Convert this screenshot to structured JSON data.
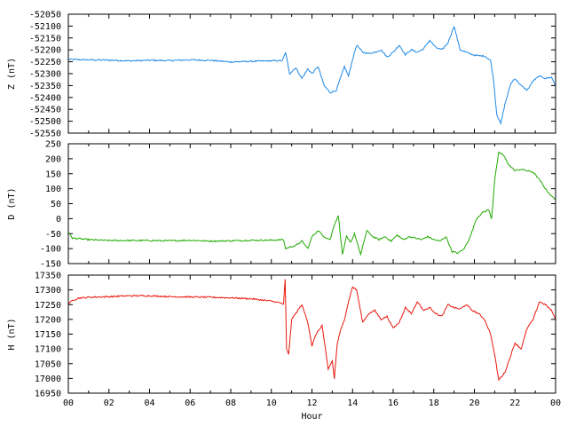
{
  "chart_data": {
    "type": "line",
    "xlabel": "Hour",
    "xlim": [
      0,
      24
    ],
    "x_tick_labels": [
      "00",
      "02",
      "04",
      "06",
      "08",
      "10",
      "12",
      "14",
      "16",
      "18",
      "20",
      "22",
      "00"
    ],
    "grid": false,
    "legend": "none",
    "panels": [
      {
        "ylabel": "Z (nT)",
        "ylim": [
          -52550,
          -52050
        ],
        "y_ticks": [
          -52550,
          -52500,
          -52450,
          -52400,
          -52350,
          -52300,
          -52250,
          -52200,
          -52150,
          -52100,
          -52050
        ],
        "color": "#1e88e5",
        "series": [
          {
            "x": [
              0,
              1,
              2,
              3,
              4,
              5,
              6,
              7,
              8,
              9,
              10,
              10.55,
              10.7,
              10.9,
              11.2,
              11.5,
              11.8,
              12.0,
              12.3,
              12.6,
              12.9,
              13.2,
              13.4,
              13.6,
              13.8,
              14.0,
              14.2,
              14.5,
              14.8,
              15.1,
              15.4,
              15.7,
              16.0,
              16.3,
              16.6,
              16.9,
              17.2,
              17.5,
              17.8,
              18.1,
              18.4,
              18.7,
              19.0,
              19.3,
              19.6,
              19.9,
              20.2,
              20.5,
              20.8,
              20.95,
              21.1,
              21.3,
              21.5,
              21.8,
              22.0,
              22.3,
              22.6,
              22.9,
              23.2,
              23.5,
              23.8,
              24.0
            ],
            "values": [
              -52240,
              -52242,
              -52243,
              -52246,
              -52244,
              -52245,
              -52242,
              -52244,
              -52251,
              -52248,
              -52246,
              -52245,
              -52210,
              -52300,
              -52275,
              -52320,
              -52280,
              -52300,
              -52270,
              -52350,
              -52380,
              -52370,
              -52320,
              -52270,
              -52310,
              -52240,
              -52180,
              -52210,
              -52215,
              -52210,
              -52200,
              -52230,
              -52210,
              -52180,
              -52220,
              -52200,
              -52210,
              -52195,
              -52160,
              -52190,
              -52200,
              -52170,
              -52100,
              -52200,
              -52210,
              -52220,
              -52225,
              -52225,
              -52245,
              -52330,
              -52470,
              -52510,
              -52430,
              -52340,
              -52320,
              -52350,
              -52370,
              -52330,
              -52310,
              -52320,
              -52315,
              -52350
            ]
          }
        ]
      },
      {
        "ylabel": "D (nT)",
        "ylim": [
          -150,
          250
        ],
        "y_ticks": [
          -150,
          -100,
          -50,
          0,
          50,
          100,
          150,
          200,
          250
        ],
        "color": "#1faa00",
        "series": [
          {
            "x": [
              0,
              0.2,
              1,
              2,
              3,
              4,
              5,
              6,
              7,
              8,
              9,
              10,
              10.6,
              10.7,
              10.9,
              11.2,
              11.5,
              11.8,
              12.0,
              12.3,
              12.6,
              12.9,
              13.1,
              13.3,
              13.5,
              13.7,
              13.9,
              14.1,
              14.4,
              14.7,
              15.0,
              15.3,
              15.6,
              15.9,
              16.2,
              16.5,
              16.8,
              17.1,
              17.4,
              17.7,
              18.0,
              18.3,
              18.6,
              18.9,
              19.2,
              19.5,
              19.8,
              20.1,
              20.4,
              20.7,
              20.85,
              21.0,
              21.2,
              21.4,
              21.7,
              22.0,
              22.3,
              22.6,
              22.9,
              23.2,
              23.5,
              23.8,
              24.0
            ],
            "values": [
              -45,
              -65,
              -70,
              -73,
              -73,
              -73,
              -74,
              -72,
              -75,
              -74,
              -72,
              -72,
              -70,
              -100,
              -95,
              -90,
              -75,
              -100,
              -60,
              -40,
              -60,
              -70,
              -20,
              10,
              -120,
              -60,
              -80,
              -50,
              -120,
              -40,
              -60,
              -70,
              -60,
              -75,
              -55,
              -70,
              -60,
              -65,
              -70,
              -60,
              -70,
              -75,
              -60,
              -110,
              -115,
              -100,
              -60,
              0,
              20,
              30,
              0,
              130,
              220,
              215,
              180,
              160,
              165,
              160,
              155,
              130,
              100,
              75,
              65
            ]
          }
        ]
      },
      {
        "ylabel": "H (nT)",
        "ylim": [
          16950,
          17350
        ],
        "y_ticks": [
          16950,
          17000,
          17050,
          17100,
          17150,
          17200,
          17250,
          17300,
          17350
        ],
        "color": "#e8170c",
        "series": [
          {
            "x": [
              0,
              0.2,
              0.5,
              1,
              2,
              3,
              4,
              5,
              6,
              7,
              8,
              9,
              10,
              10.5,
              10.6,
              10.68,
              10.75,
              10.85,
              11.0,
              11.2,
              11.5,
              11.8,
              12.0,
              12.2,
              12.5,
              12.8,
              13.0,
              13.1,
              13.25,
              13.4,
              13.6,
              13.8,
              14.0,
              14.2,
              14.5,
              14.8,
              15.1,
              15.4,
              15.7,
              16.0,
              16.3,
              16.6,
              16.9,
              17.2,
              17.5,
              17.8,
              18.1,
              18.4,
              18.7,
              19.0,
              19.3,
              19.6,
              19.9,
              20.2,
              20.5,
              20.8,
              21.0,
              21.2,
              21.5,
              21.8,
              22.0,
              22.3,
              22.6,
              22.9,
              23.2,
              23.5,
              23.8,
              24.0
            ],
            "values": [
              17250,
              17265,
              17272,
              17275,
              17277,
              17280,
              17280,
              17277,
              17276,
              17275,
              17273,
              17270,
              17262,
              17255,
              17250,
              17335,
              17100,
              17080,
              17200,
              17220,
              17250,
              17190,
              17110,
              17150,
              17180,
              17030,
              17060,
              17000,
              17120,
              17160,
              17200,
              17260,
              17310,
              17300,
              17190,
              17220,
              17230,
              17200,
              17210,
              17170,
              17190,
              17240,
              17220,
              17260,
              17230,
              17240,
              17220,
              17210,
              17250,
              17240,
              17235,
              17250,
              17230,
              17220,
              17200,
              17150,
              17080,
              16995,
              17020,
              17080,
              17120,
              17100,
              17170,
              17200,
              17260,
              17250,
              17230,
              17200
            ]
          }
        ]
      }
    ]
  }
}
